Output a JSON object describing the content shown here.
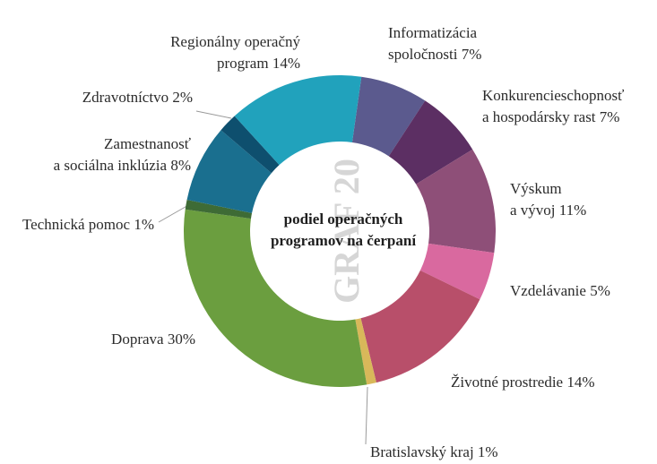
{
  "chart_data": {
    "type": "donut",
    "title": "podiel operačných programov na čerpaní",
    "watermark": "GRAF 20",
    "categories": [
      "Informatizácia spoločnosti",
      "Konkurencieschopnosť a hospodársky rast",
      "Výskum a vývoj",
      "Vzdelávanie",
      "Životné prostredie",
      "Bratislavský kraj",
      "Doprava",
      "Technická pomoc",
      "Zamestnanosť a sociálna inklúzia",
      "Zdravotníctvo",
      "Regionálny operačný program"
    ],
    "values": [
      7,
      7,
      11,
      5,
      14,
      1,
      30,
      1,
      8,
      2,
      14
    ],
    "value_labels": [
      "7%",
      "7%",
      "11%",
      "5%",
      "14%",
      "1%",
      "30%",
      "1%",
      "8%",
      "2%",
      "14%"
    ],
    "colors": [
      "#5b5a8e",
      "#5c2f63",
      "#8e4f78",
      "#d9699f",
      "#b84f6a",
      "#d8b85a",
      "#6b9e3f",
      "#3e6b35",
      "#1a6f8f",
      "#0e4f6e",
      "#21a2bc"
    ]
  }
}
